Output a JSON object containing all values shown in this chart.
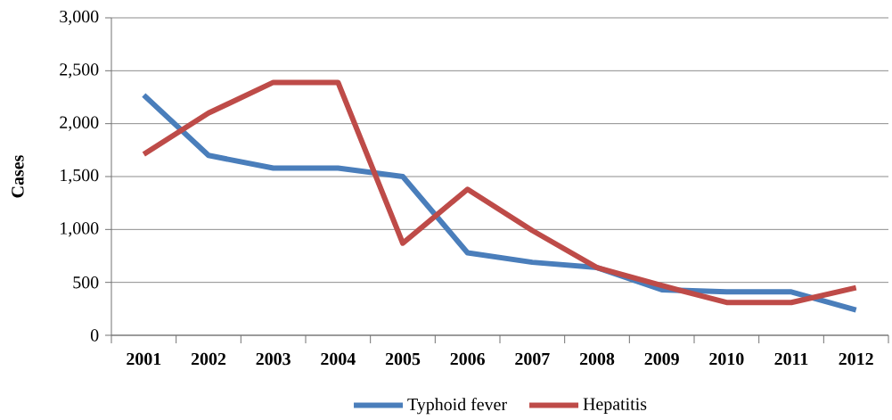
{
  "chart_data": {
    "type": "line",
    "ylabel": "Cases",
    "categories": [
      "2001",
      "2002",
      "2003",
      "2004",
      "2005",
      "2006",
      "2007",
      "2008",
      "2009",
      "2010",
      "2011",
      "2012"
    ],
    "series": [
      {
        "name": "Typhoid fever",
        "color": "#4a7ebb",
        "values": [
          2270,
          1700,
          1580,
          1580,
          1500,
          780,
          690,
          640,
          430,
          410,
          410,
          240
        ]
      },
      {
        "name": "Hepatitis",
        "color": "#be4b48",
        "values": [
          1710,
          2100,
          2390,
          2390,
          870,
          1380,
          990,
          640,
          470,
          310,
          310,
          450
        ]
      }
    ],
    "ylim": [
      0,
      3000
    ],
    "yticks": [
      0,
      500,
      {
        "value": 1000,
        "label": "1,000"
      },
      {
        "value": 1500,
        "label": "1,500"
      },
      {
        "value": 2000,
        "label": "2,000"
      },
      {
        "value": 2500,
        "label": "2,500"
      },
      {
        "value": 3000,
        "label": "3,000"
      }
    ],
    "grid": "y",
    "legend": "bottom"
  }
}
